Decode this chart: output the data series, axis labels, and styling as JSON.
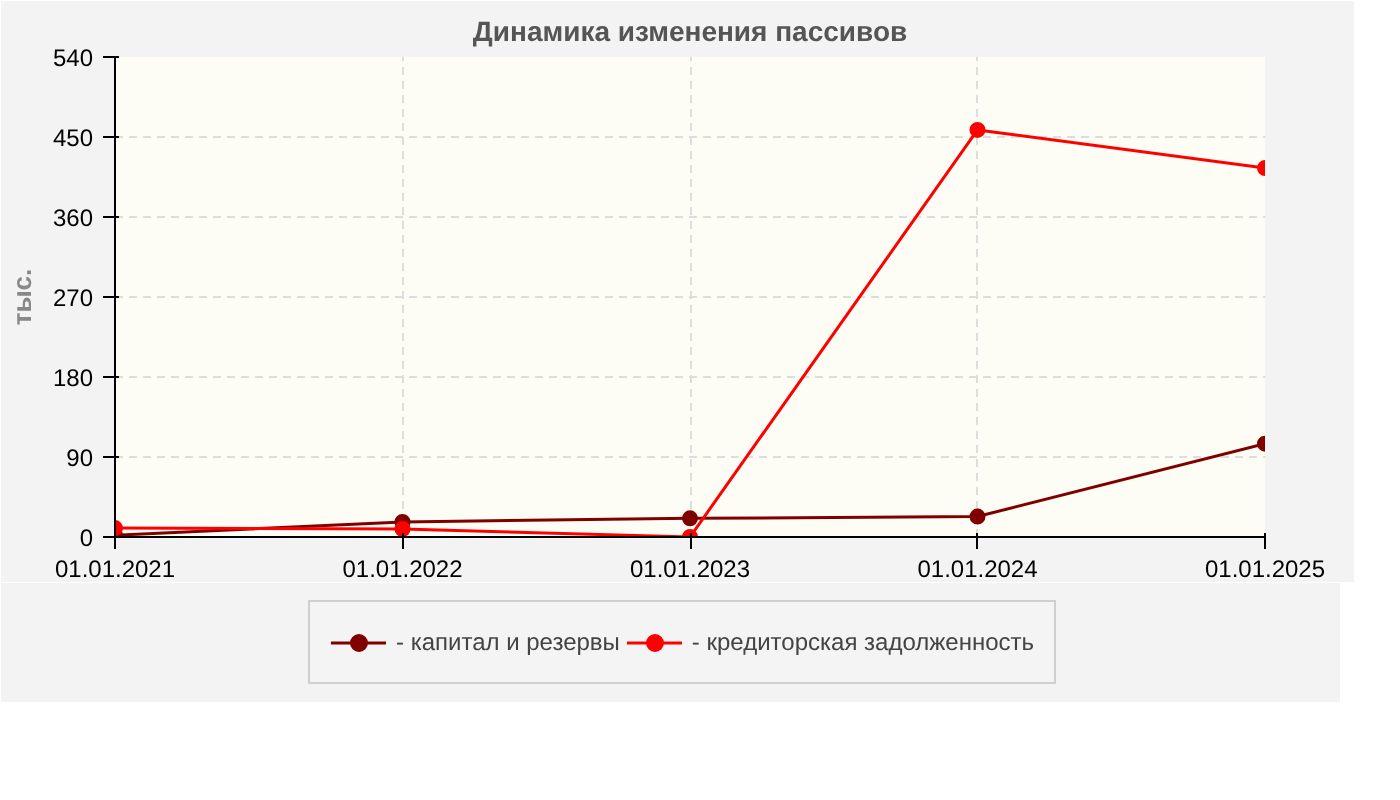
{
  "chart_data": {
    "type": "line",
    "title": "Динамика изменения пассивов",
    "ylabel": "тыс.",
    "categories": [
      "01.01.2021",
      "01.01.2022",
      "01.01.2023",
      "01.01.2024",
      "01.01.2025"
    ],
    "series": [
      {
        "name": "- капитал и резервы",
        "color": "#800000",
        "values": [
          2,
          17,
          21,
          23,
          105
        ]
      },
      {
        "name": "- кредиторская задолженность",
        "color": "#ff0000",
        "values": [
          10,
          9,
          0,
          458,
          415
        ]
      }
    ],
    "ylim": [
      0,
      540
    ],
    "yticks": [
      0,
      90,
      180,
      270,
      360,
      450,
      540
    ],
    "grid": true,
    "legend": "bottom",
    "marker": "circle",
    "line_style": "solid"
  }
}
